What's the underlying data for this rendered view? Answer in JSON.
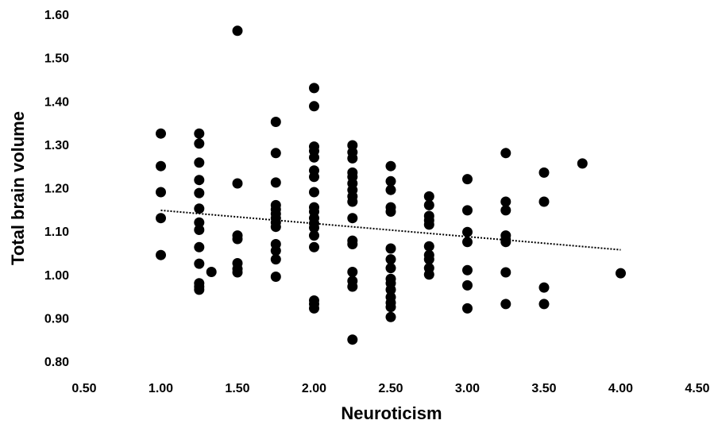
{
  "chart_data": {
    "type": "scatter",
    "title": "",
    "xlabel": "Neuroticism",
    "ylabel": "Total brain volume",
    "xlim": [
      0.5,
      4.5
    ],
    "ylim": [
      0.8,
      1.6
    ],
    "x_ticks": [
      "0.50",
      "1.00",
      "1.50",
      "2.00",
      "2.50",
      "3.00",
      "3.50",
      "4.00",
      "4.50"
    ],
    "y_ticks": [
      "0.80",
      "0.90",
      "1.00",
      "1.10",
      "1.20",
      "1.30",
      "1.40",
      "1.50",
      "1.60"
    ],
    "grid": false,
    "legend": "none",
    "marker_color": "#000000",
    "trendline": {
      "style": "dotted",
      "x": [
        1.0,
        4.0
      ],
      "y": [
        1.148,
        1.057
      ]
    },
    "series": [
      {
        "points": [
          [
            1.0,
            1.325
          ],
          [
            1.0,
            1.25
          ],
          [
            1.0,
            1.19
          ],
          [
            1.0,
            1.13
          ],
          [
            1.0,
            1.045
          ],
          [
            1.25,
            1.325
          ],
          [
            1.25,
            1.302
          ],
          [
            1.25,
            1.258
          ],
          [
            1.25,
            1.218
          ],
          [
            1.25,
            1.188
          ],
          [
            1.25,
            1.152
          ],
          [
            1.25,
            1.12
          ],
          [
            1.25,
            1.103
          ],
          [
            1.25,
            1.063
          ],
          [
            1.25,
            1.025
          ],
          [
            1.25,
            0.98
          ],
          [
            1.25,
            0.972
          ],
          [
            1.25,
            0.965
          ],
          [
            1.33,
            1.006
          ],
          [
            1.5,
            1.562
          ],
          [
            1.5,
            1.21
          ],
          [
            1.5,
            1.09
          ],
          [
            1.5,
            1.082
          ],
          [
            1.5,
            1.026
          ],
          [
            1.5,
            1.013
          ],
          [
            1.5,
            1.005
          ],
          [
            1.75,
            1.352
          ],
          [
            1.75,
            1.28
          ],
          [
            1.75,
            1.212
          ],
          [
            1.75,
            1.16
          ],
          [
            1.75,
            1.15
          ],
          [
            1.75,
            1.14
          ],
          [
            1.75,
            1.13
          ],
          [
            1.75,
            1.12
          ],
          [
            1.75,
            1.11
          ],
          [
            1.75,
            1.07
          ],
          [
            1.75,
            1.055
          ],
          [
            1.75,
            1.035
          ],
          [
            1.75,
            0.995
          ],
          [
            2.0,
            1.43
          ],
          [
            2.0,
            1.388
          ],
          [
            2.0,
            1.295
          ],
          [
            2.0,
            1.285
          ],
          [
            2.0,
            1.27
          ],
          [
            2.0,
            1.24
          ],
          [
            2.0,
            1.225
          ],
          [
            2.0,
            1.19
          ],
          [
            2.0,
            1.155
          ],
          [
            2.0,
            1.145
          ],
          [
            2.0,
            1.13
          ],
          [
            2.0,
            1.118
          ],
          [
            2.0,
            1.108
          ],
          [
            2.0,
            1.09
          ],
          [
            2.0,
            1.063
          ],
          [
            2.0,
            0.94
          ],
          [
            2.0,
            0.932
          ],
          [
            2.0,
            0.922
          ],
          [
            2.25,
            1.298
          ],
          [
            2.25,
            1.282
          ],
          [
            2.25,
            1.268
          ],
          [
            2.25,
            1.235
          ],
          [
            2.25,
            1.225
          ],
          [
            2.25,
            1.21
          ],
          [
            2.25,
            1.195
          ],
          [
            2.25,
            1.18
          ],
          [
            2.25,
            1.168
          ],
          [
            2.25,
            1.13
          ],
          [
            2.25,
            1.078
          ],
          [
            2.25,
            1.07
          ],
          [
            2.25,
            1.006
          ],
          [
            2.25,
            0.985
          ],
          [
            2.25,
            0.972
          ],
          [
            2.25,
            0.85
          ],
          [
            2.5,
            1.25
          ],
          [
            2.5,
            1.215
          ],
          [
            2.5,
            1.195
          ],
          [
            2.5,
            1.155
          ],
          [
            2.5,
            1.145
          ],
          [
            2.5,
            1.06
          ],
          [
            2.5,
            1.035
          ],
          [
            2.5,
            1.015
          ],
          [
            2.5,
            0.99
          ],
          [
            2.5,
            0.98
          ],
          [
            2.5,
            0.965
          ],
          [
            2.5,
            0.948
          ],
          [
            2.5,
            0.935
          ],
          [
            2.5,
            0.925
          ],
          [
            2.5,
            0.902
          ],
          [
            2.75,
            1.18
          ],
          [
            2.75,
            1.16
          ],
          [
            2.75,
            1.135
          ],
          [
            2.75,
            1.125
          ],
          [
            2.75,
            1.115
          ],
          [
            2.75,
            1.065
          ],
          [
            2.75,
            1.045
          ],
          [
            2.75,
            1.035
          ],
          [
            2.75,
            1.015
          ],
          [
            2.75,
            1.0
          ],
          [
            3.0,
            1.22
          ],
          [
            3.0,
            1.148
          ],
          [
            3.0,
            1.098
          ],
          [
            3.0,
            1.075
          ],
          [
            3.0,
            1.01
          ],
          [
            3.0,
            0.975
          ],
          [
            3.0,
            0.922
          ],
          [
            3.25,
            1.28
          ],
          [
            3.25,
            1.168
          ],
          [
            3.25,
            1.148
          ],
          [
            3.25,
            1.09
          ],
          [
            3.25,
            1.08
          ],
          [
            3.25,
            1.075
          ],
          [
            3.25,
            1.005
          ],
          [
            3.25,
            0.932
          ],
          [
            3.5,
            1.235
          ],
          [
            3.5,
            1.168
          ],
          [
            3.5,
            0.97
          ],
          [
            3.5,
            0.932
          ],
          [
            3.75,
            1.256
          ],
          [
            4.0,
            1.003
          ]
        ]
      }
    ]
  }
}
